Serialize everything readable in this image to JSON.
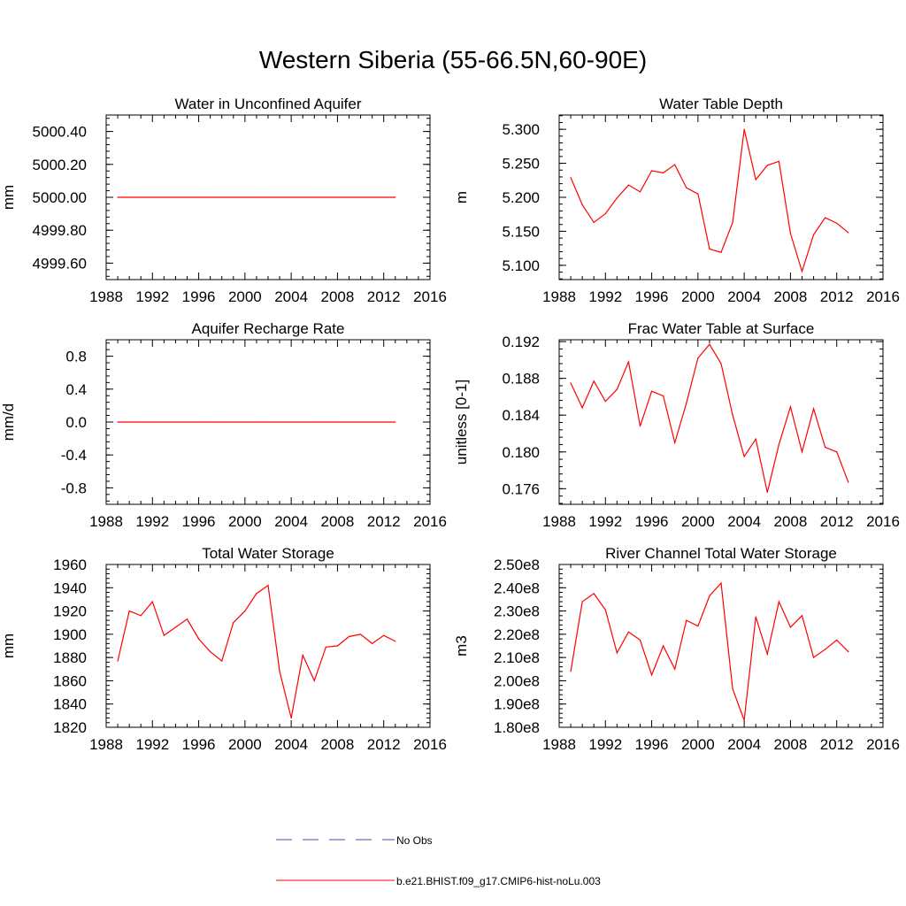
{
  "figure": {
    "title": "Western Siberia (55-66.5N,60-90E)"
  },
  "colors": {
    "model_line": "#ff0000",
    "obs_line": "#3a50a0",
    "axis": "#000000"
  },
  "legend": {
    "entries": [
      {
        "label": "No Obs",
        "style": "dashed",
        "color": "#3a50a0"
      },
      {
        "label": "b.e21.BHIST.f09_g17.CMIP6-hist-noLu.003",
        "style": "solid",
        "color": "#ff0000"
      }
    ]
  },
  "chart_data": [
    {
      "type": "line",
      "title": "Water in Unconfined Aquifer",
      "ylabel": "mm",
      "xlim": [
        1988,
        2016
      ],
      "xticks": [
        1988,
        1992,
        1996,
        2000,
        2004,
        2008,
        2012,
        2016
      ],
      "ylim": [
        4999.5,
        5000.5
      ],
      "yticks": [
        4999.6,
        4999.8,
        5000.0,
        5000.2,
        5000.4
      ],
      "ytick_labels": [
        "4999.60",
        "4999.80",
        "5000.00",
        "5000.20",
        "5000.40"
      ],
      "series": [
        {
          "x": [
            1989,
            1990,
            1991,
            1992,
            1993,
            1994,
            1995,
            1996,
            1997,
            1998,
            1999,
            2000,
            2001,
            2002,
            2003,
            2004,
            2005,
            2006,
            2007,
            2008,
            2009,
            2010,
            2011,
            2012,
            2013
          ],
          "values": [
            5000,
            5000,
            5000,
            5000,
            5000,
            5000,
            5000,
            5000,
            5000,
            5000,
            5000,
            5000,
            5000,
            5000,
            5000,
            5000,
            5000,
            5000,
            5000,
            5000,
            5000,
            5000,
            5000,
            5000,
            5000
          ]
        }
      ]
    },
    {
      "type": "line",
      "title": "Water Table Depth",
      "ylabel": "m",
      "xlim": [
        1988,
        2016
      ],
      "xticks": [
        1988,
        1992,
        1996,
        2000,
        2004,
        2008,
        2012,
        2016
      ],
      "ylim": [
        5.079,
        5.321
      ],
      "yticks": [
        5.1,
        5.15,
        5.2,
        5.25,
        5.3
      ],
      "ytick_labels": [
        "5.100",
        "5.150",
        "5.200",
        "5.250",
        "5.300"
      ],
      "series": [
        {
          "x": [
            1989,
            1990,
            1991,
            1992,
            1993,
            1994,
            1995,
            1996,
            1997,
            1998,
            1999,
            2000,
            2001,
            2002,
            2003,
            2004,
            2005,
            2006,
            2007,
            2008,
            2009,
            2010,
            2011,
            2012,
            2013
          ],
          "values": [
            5.229,
            5.189,
            5.163,
            5.176,
            5.199,
            5.218,
            5.208,
            5.239,
            5.236,
            5.248,
            5.214,
            5.205,
            5.124,
            5.119,
            5.163,
            5.3,
            5.226,
            5.247,
            5.253,
            5.147,
            5.091,
            5.145,
            5.17,
            5.162,
            5.148
          ]
        }
      ]
    },
    {
      "type": "line",
      "title": "Aquifer Recharge Rate",
      "ylabel": "mm/d",
      "xlim": [
        1988,
        2016
      ],
      "xticks": [
        1988,
        1992,
        1996,
        2000,
        2004,
        2008,
        2012,
        2016
      ],
      "ylim": [
        -1.0,
        1.0
      ],
      "yticks": [
        -0.8,
        -0.4,
        0.0,
        0.4,
        0.8
      ],
      "ytick_labels": [
        "-0.8",
        "-0.4",
        "0.0",
        "0.4",
        "0.8"
      ],
      "series": [
        {
          "x": [
            1989,
            1990,
            1991,
            1992,
            1993,
            1994,
            1995,
            1996,
            1997,
            1998,
            1999,
            2000,
            2001,
            2002,
            2003,
            2004,
            2005,
            2006,
            2007,
            2008,
            2009,
            2010,
            2011,
            2012,
            2013
          ],
          "values": [
            0,
            0,
            0,
            0,
            0,
            0,
            0,
            0,
            0,
            0,
            0,
            0,
            0,
            0,
            0,
            0,
            0,
            0,
            0,
            0,
            0,
            0,
            0,
            0,
            0
          ]
        }
      ]
    },
    {
      "type": "line",
      "title": "Frac Water Table at Surface",
      "ylabel": "unitless [0-1]",
      "xlim": [
        1988,
        2016
      ],
      "xticks": [
        1988,
        1992,
        1996,
        2000,
        2004,
        2008,
        2012,
        2016
      ],
      "ylim": [
        0.1743,
        0.1922
      ],
      "yticks": [
        0.176,
        0.18,
        0.184,
        0.188,
        0.192
      ],
      "ytick_labels": [
        "0.176",
        "0.180",
        "0.184",
        "0.188",
        "0.192"
      ],
      "series": [
        {
          "x": [
            1989,
            1990,
            1991,
            1992,
            1993,
            1994,
            1995,
            1996,
            1997,
            1998,
            1999,
            2000,
            2001,
            2002,
            2003,
            2004,
            2005,
            2006,
            2007,
            2008,
            2009,
            2010,
            2011,
            2012,
            2013
          ],
          "values": [
            0.1875,
            0.1848,
            0.1877,
            0.1855,
            0.1868,
            0.1898,
            0.1828,
            0.1866,
            0.1861,
            0.181,
            0.1853,
            0.1902,
            0.1917,
            0.1896,
            0.184,
            0.1795,
            0.1814,
            0.1756,
            0.1808,
            0.1849,
            0.18,
            0.1847,
            0.1805,
            0.18,
            0.1767
          ]
        }
      ]
    },
    {
      "type": "line",
      "title": "Total Water Storage",
      "ylabel": "mm",
      "xlim": [
        1988,
        2016
      ],
      "xticks": [
        1988,
        1992,
        1996,
        2000,
        2004,
        2008,
        2012,
        2016
      ],
      "ylim": [
        1820,
        1960
      ],
      "yticks": [
        1820,
        1840,
        1860,
        1880,
        1900,
        1920,
        1940,
        1960
      ],
      "ytick_labels": [
        "1820",
        "1840",
        "1860",
        "1880",
        "1900",
        "1920",
        "1940",
        "1960"
      ],
      "series": [
        {
          "x": [
            1989,
            1990,
            1991,
            1992,
            1993,
            1994,
            1995,
            1996,
            1997,
            1998,
            1999,
            2000,
            2001,
            2002,
            2003,
            2004,
            2005,
            2006,
            2007,
            2008,
            2009,
            2010,
            2011,
            2012,
            2013
          ],
          "values": [
            1877,
            1920,
            1916,
            1928,
            1899,
            1906,
            1913,
            1896,
            1885,
            1877,
            1910,
            1920,
            1935,
            1942,
            1868,
            1828,
            1882,
            1860,
            1889,
            1890,
            1898,
            1900,
            1892,
            1899,
            1894
          ]
        }
      ]
    },
    {
      "type": "line",
      "title": "River Channel Total Water Storage",
      "ylabel": "m3",
      "xlim": [
        1988,
        2016
      ],
      "xticks": [
        1988,
        1992,
        1996,
        2000,
        2004,
        2008,
        2012,
        2016
      ],
      "ylim": [
        180000000,
        250000000
      ],
      "yticks": [
        180000000,
        190000000,
        200000000,
        210000000,
        220000000,
        230000000,
        240000000,
        250000000
      ],
      "ytick_labels": [
        "1.80e8",
        "1.90e8",
        "2.00e8",
        "2.10e8",
        "2.20e8",
        "2.30e8",
        "2.40e8",
        "2.50e8"
      ],
      "series": [
        {
          "x": [
            1989,
            1990,
            1991,
            1992,
            1993,
            1994,
            1995,
            1996,
            1997,
            1998,
            1999,
            2000,
            2001,
            2002,
            2003,
            2004,
            2005,
            2006,
            2007,
            2008,
            2009,
            2010,
            2011,
            2012,
            2013
          ],
          "values": [
            204000000,
            234000000,
            237500000,
            230500000,
            212000000,
            221000000,
            217500000,
            202500000,
            215000000,
            205000000,
            226000000,
            223500000,
            236500000,
            242000000,
            196500000,
            183000000,
            227500000,
            211500000,
            234000000,
            223000000,
            228000000,
            210000000,
            213500000,
            217500000,
            212500000
          ]
        }
      ]
    }
  ]
}
